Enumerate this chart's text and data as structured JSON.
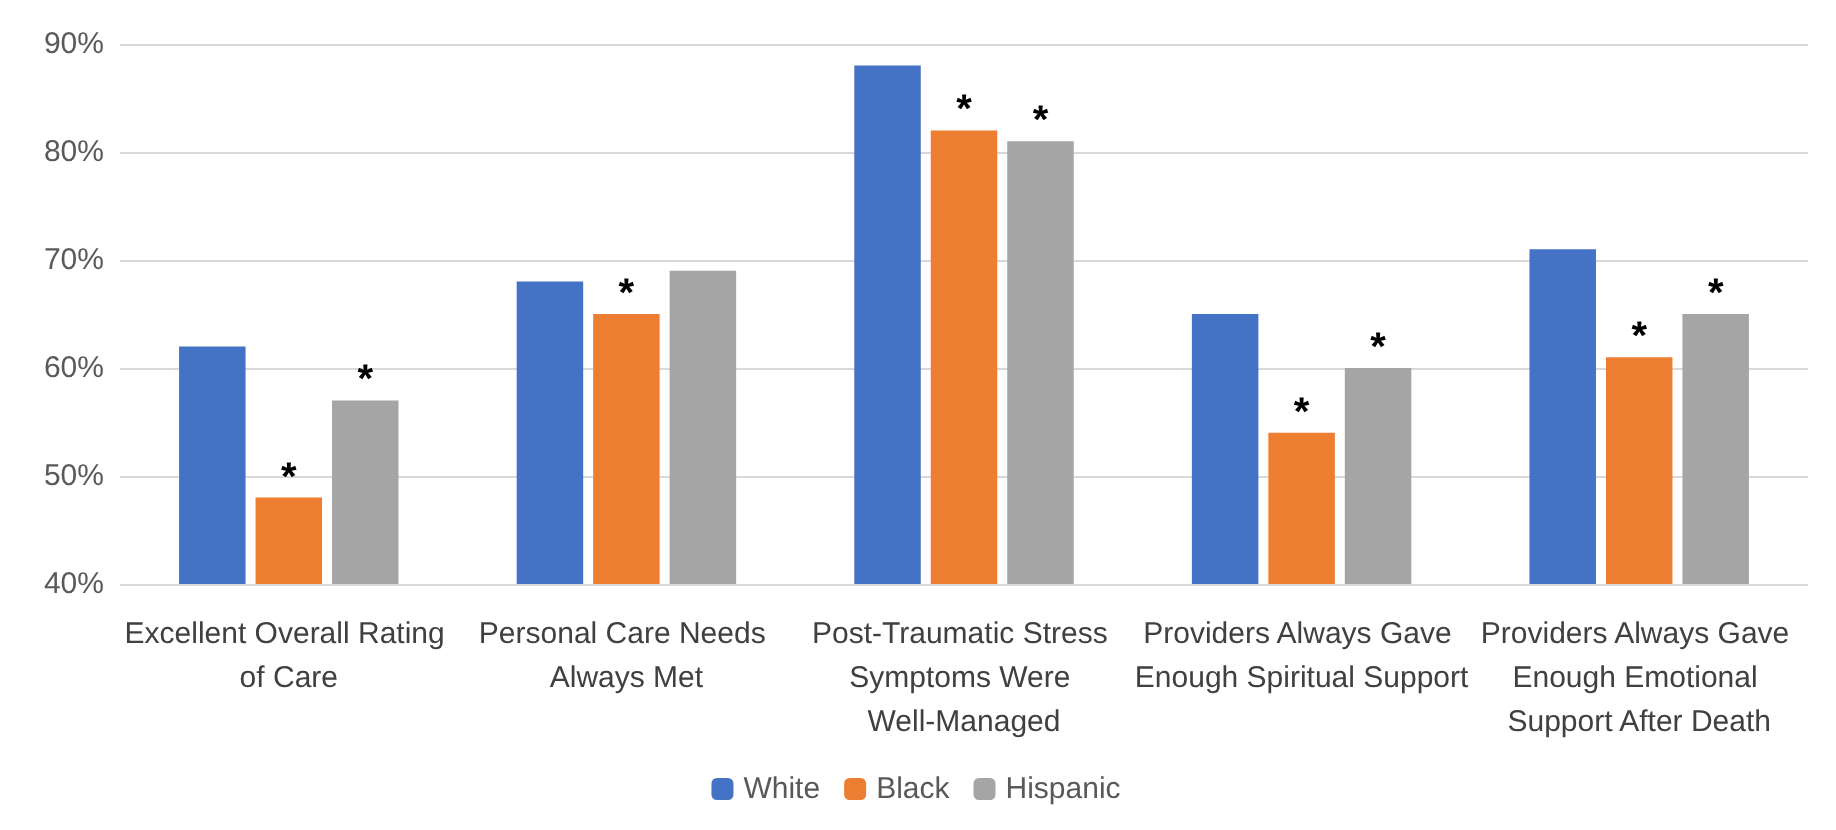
{
  "chart_data": {
    "type": "bar",
    "categories": [
      "Excellent Overall Rating of Care",
      "Personal Care Needs Always Met",
      "Post-Traumatic Stress Symptoms Were Well-Managed",
      "Providers Always Gave Enough Spiritual Support",
      "Providers Always Gave Enough Emotional Support After Death"
    ],
    "series": [
      {
        "name": "White",
        "color": "#4472c4",
        "values": [
          62,
          68,
          88,
          65,
          71
        ]
      },
      {
        "name": "Black",
        "color": "#ed7d31",
        "values": [
          48,
          65,
          82,
          54,
          61
        ],
        "value_labels": [
          "*",
          "*",
          "*",
          "*",
          "*"
        ]
      },
      {
        "name": "Hispanic",
        "color": "#a5a5a5",
        "values": [
          57,
          69,
          81,
          60,
          65
        ],
        "value_labels": [
          "*",
          null,
          "*",
          "*",
          "*"
        ]
      }
    ],
    "ylim": [
      40,
      90
    ],
    "yticks": [
      {
        "value": 40,
        "label": "40%"
      },
      {
        "value": 50,
        "label": "50%"
      },
      {
        "value": 60,
        "label": "60%"
      },
      {
        "value": 70,
        "label": "70%"
      },
      {
        "value": 80,
        "label": "80%"
      },
      {
        "value": 90,
        "label": "90%"
      }
    ],
    "grid": "y",
    "legend": "bottom"
  }
}
